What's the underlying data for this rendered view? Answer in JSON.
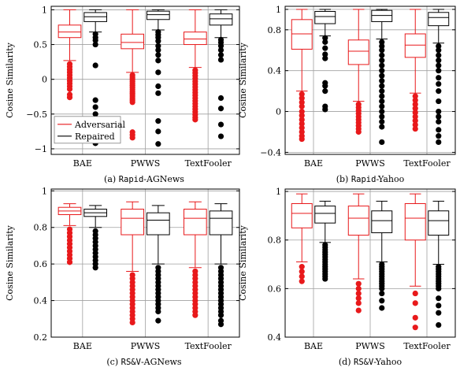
{
  "colors": {
    "adversarial": "#e8191b",
    "repaired": "#000000",
    "grid": "#a0a0a0"
  },
  "legend": {
    "adversarial": "Adversarial",
    "repaired": "Repaired"
  },
  "chart_data": [
    {
      "type": "box",
      "caption_prefix": "(a) ",
      "caption_mono": "Rapid",
      "caption_rest": "-AGNews",
      "ylabel": "Cosine Similarity",
      "ylim": [
        -1.08,
        1.05
      ],
      "yticks": [
        -1,
        -0.5,
        0,
        0.5,
        1
      ],
      "ytick_labels": [
        "−1",
        "−0.5",
        "0",
        "0.5",
        "1"
      ],
      "categories": [
        "BAE",
        "PWWS",
        "TextFooler"
      ],
      "legend_shown": true,
      "series": [
        {
          "name": "Adversarial",
          "boxes": [
            {
              "whislo": 0.27,
              "q1": 0.6,
              "med": 0.68,
              "q3": 0.78,
              "whishi": 1.0,
              "fliers": [
                0.22,
                0.18,
                0.14,
                0.1,
                0.06,
                0.02,
                -0.02,
                -0.06,
                -0.1,
                -0.14,
                -0.22,
                -0.26
              ]
            },
            {
              "whislo": 0.1,
              "q1": 0.44,
              "med": 0.53,
              "q3": 0.65,
              "whishi": 1.0,
              "fliers": [
                0.06,
                0.03,
                0.0,
                -0.03,
                -0.06,
                -0.09,
                -0.12,
                -0.15,
                -0.18,
                -0.21,
                -0.24,
                -0.27,
                -0.3,
                -0.33,
                -0.76,
                -0.8,
                -0.84
              ]
            },
            {
              "whislo": 0.17,
              "q1": 0.5,
              "med": 0.58,
              "q3": 0.68,
              "whishi": 1.0,
              "fliers": [
                0.13,
                0.09,
                0.05,
                0.01,
                -0.03,
                -0.07,
                -0.11,
                -0.15,
                -0.19,
                -0.23,
                -0.27,
                -0.31,
                -0.35,
                -0.39,
                -0.43,
                -0.47,
                -0.51,
                -0.55,
                -0.58
              ]
            }
          ]
        },
        {
          "name": "Repaired",
          "boxes": [
            {
              "whislo": 0.68,
              "q1": 0.83,
              "med": 0.9,
              "q3": 0.96,
              "whishi": 1.0,
              "fliers": [
                0.65,
                0.6,
                0.56,
                0.5,
                0.2,
                -0.3,
                -0.4,
                -0.5,
                -0.6,
                -0.68,
                -0.8,
                -0.85,
                -0.92
              ]
            },
            {
              "whislo": 0.71,
              "q1": 0.86,
              "med": 0.93,
              "q3": 0.98,
              "whishi": 1.0,
              "fliers": [
                0.68,
                0.64,
                0.6,
                0.55,
                0.48,
                0.42,
                0.35,
                0.27,
                0.1,
                -0.1,
                -0.2,
                -0.6,
                -0.75,
                -0.93
              ]
            },
            {
              "whislo": 0.6,
              "q1": 0.78,
              "med": 0.87,
              "q3": 0.94,
              "whishi": 1.0,
              "fliers": [
                0.57,
                0.53,
                0.48,
                0.42,
                0.35,
                0.28,
                -0.27,
                -0.42,
                -0.65,
                -0.82
              ]
            }
          ]
        }
      ]
    },
    {
      "type": "box",
      "caption_prefix": "(b) ",
      "caption_mono": "Rapid",
      "caption_rest": "-Yahoo",
      "ylabel": "Cosine Similarity",
      "ylim": [
        -0.42,
        1.03
      ],
      "yticks": [
        -0.4,
        0,
        0.4,
        0.8,
        1
      ],
      "ytick_labels": [
        "−0.4",
        "0",
        "0.4",
        "0.8",
        "1"
      ],
      "categories": [
        "BAE",
        "PWWS",
        "TextFooler"
      ],
      "legend_shown": false,
      "series": [
        {
          "name": "Adversarial",
          "boxes": [
            {
              "whislo": 0.2,
              "q1": 0.61,
              "med": 0.76,
              "q3": 0.9,
              "whishi": 1.0,
              "fliers": [
                0.17,
                0.13,
                0.09,
                0.05,
                0.0,
                -0.04,
                -0.08,
                -0.12,
                -0.16,
                -0.2,
                -0.24,
                -0.27
              ]
            },
            {
              "whislo": 0.1,
              "q1": 0.46,
              "med": 0.59,
              "q3": 0.7,
              "whishi": 1.0,
              "fliers": [
                0.07,
                0.04,
                0.01,
                -0.02,
                -0.05,
                -0.08,
                -0.11,
                -0.14,
                -0.17,
                -0.2
              ]
            },
            {
              "whislo": 0.18,
              "q1": 0.53,
              "med": 0.65,
              "q3": 0.76,
              "whishi": 1.0,
              "fliers": [
                0.15,
                0.11,
                0.07,
                0.03,
                -0.01,
                -0.05,
                -0.09,
                -0.13,
                -0.17
              ]
            }
          ]
        },
        {
          "name": "Repaired",
          "boxes": [
            {
              "whislo": 0.74,
              "q1": 0.86,
              "med": 0.93,
              "q3": 0.98,
              "whishi": 1.0,
              "fliers": [
                0.72,
                0.68,
                0.62,
                0.56,
                0.52,
                0.28,
                0.25,
                0.2,
                0.05,
                0.02
              ]
            },
            {
              "whislo": 0.71,
              "q1": 0.88,
              "med": 0.94,
              "q3": 0.99,
              "whishi": 1.0,
              "fliers": [
                0.68,
                0.64,
                0.6,
                0.55,
                0.5,
                0.45,
                0.4,
                0.35,
                0.3,
                0.25,
                0.2,
                0.15,
                0.1,
                0.05,
                0.0,
                -0.05,
                -0.1,
                -0.15,
                -0.3
              ]
            },
            {
              "whislo": 0.67,
              "q1": 0.84,
              "med": 0.92,
              "q3": 0.97,
              "whishi": 1.0,
              "fliers": [
                0.64,
                0.6,
                0.55,
                0.5,
                0.45,
                0.4,
                0.33,
                0.27,
                0.2,
                0.1,
                0.0,
                -0.05,
                -0.1,
                -0.18,
                -0.24,
                -0.3
              ]
            }
          ]
        }
      ]
    },
    {
      "type": "box",
      "caption_prefix": "(c) ",
      "caption_mono": "RS&V",
      "caption_rest": "-AGNews",
      "ylabel": "Cosine Similarity",
      "ylim": [
        0.2,
        1.01
      ],
      "yticks": [
        0.2,
        0.4,
        0.6,
        0.8,
        1
      ],
      "ytick_labels": [
        "0.2",
        "0.4",
        "0.6",
        "0.8",
        "1"
      ],
      "categories": [
        "BAE",
        "PWWS",
        "TextFooler"
      ],
      "legend_shown": false,
      "series": [
        {
          "name": "Adversarial",
          "boxes": [
            {
              "whislo": 0.81,
              "q1": 0.87,
              "med": 0.89,
              "q3": 0.91,
              "whishi": 0.93,
              "fliers": [
                0.79,
                0.77,
                0.75,
                0.73,
                0.71,
                0.69,
                0.67,
                0.65,
                0.63,
                0.61
              ]
            },
            {
              "whislo": 0.56,
              "q1": 0.76,
              "med": 0.85,
              "q3": 0.9,
              "whishi": 0.94,
              "fliers": [
                0.54,
                0.52,
                0.5,
                0.48,
                0.46,
                0.44,
                0.42,
                0.4,
                0.38,
                0.36,
                0.34,
                0.32,
                0.3,
                0.28
              ]
            },
            {
              "whislo": 0.58,
              "q1": 0.76,
              "med": 0.85,
              "q3": 0.9,
              "whishi": 0.94,
              "fliers": [
                0.56,
                0.54,
                0.52,
                0.5,
                0.48,
                0.46,
                0.44,
                0.42,
                0.4,
                0.38,
                0.36,
                0.34,
                0.32
              ]
            }
          ]
        },
        {
          "name": "Repaired",
          "boxes": [
            {
              "whislo": 0.8,
              "q1": 0.86,
              "med": 0.88,
              "q3": 0.9,
              "whishi": 0.92,
              "fliers": [
                0.78,
                0.76,
                0.74,
                0.72,
                0.7,
                0.68,
                0.66,
                0.64,
                0.62,
                0.6,
                0.58
              ]
            },
            {
              "whislo": 0.6,
              "q1": 0.76,
              "med": 0.84,
              "q3": 0.88,
              "whishi": 0.92,
              "fliers": [
                0.58,
                0.56,
                0.54,
                0.52,
                0.5,
                0.48,
                0.46,
                0.44,
                0.42,
                0.4,
                0.38,
                0.36,
                0.34,
                0.29
              ]
            },
            {
              "whislo": 0.6,
              "q1": 0.76,
              "med": 0.85,
              "q3": 0.89,
              "whishi": 0.93,
              "fliers": [
                0.58,
                0.56,
                0.54,
                0.52,
                0.5,
                0.48,
                0.46,
                0.44,
                0.42,
                0.4,
                0.38,
                0.36,
                0.34,
                0.32,
                0.29,
                0.27
              ]
            }
          ]
        }
      ]
    },
    {
      "type": "box",
      "caption_prefix": "(d) ",
      "caption_mono": "RS&V",
      "caption_rest": "-Yahoo",
      "ylabel": "Cosine Similarity",
      "ylim": [
        0.4,
        1.01
      ],
      "yticks": [
        0.4,
        0.6,
        0.8,
        1
      ],
      "ytick_labels": [
        "0.4",
        "0.6",
        "0.8",
        "1"
      ],
      "categories": [
        "BAE",
        "PWWS",
        "TextFooler"
      ],
      "legend_shown": false,
      "series": [
        {
          "name": "Adversarial",
          "boxes": [
            {
              "whislo": 0.71,
              "q1": 0.85,
              "med": 0.91,
              "q3": 0.95,
              "whishi": 0.99,
              "fliers": [
                0.69,
                0.67,
                0.65,
                0.63
              ]
            },
            {
              "whislo": 0.64,
              "q1": 0.82,
              "med": 0.89,
              "q3": 0.94,
              "whishi": 0.99,
              "fliers": [
                0.62,
                0.6,
                0.58,
                0.56,
                0.54,
                0.51
              ]
            },
            {
              "whislo": 0.61,
              "q1": 0.8,
              "med": 0.89,
              "q3": 0.95,
              "whishi": 0.99,
              "fliers": [
                0.58,
                0.54,
                0.48,
                0.44
              ]
            }
          ]
        },
        {
          "name": "Repaired",
          "boxes": [
            {
              "whislo": 0.79,
              "q1": 0.87,
              "med": 0.91,
              "q3": 0.94,
              "whishi": 0.96,
              "fliers": [
                0.78,
                0.77,
                0.76,
                0.75,
                0.74,
                0.73,
                0.72,
                0.71,
                0.7,
                0.69,
                0.68,
                0.67,
                0.66,
                0.65,
                0.64
              ]
            },
            {
              "whislo": 0.71,
              "q1": 0.83,
              "med": 0.88,
              "q3": 0.92,
              "whishi": 0.96,
              "fliers": [
                0.7,
                0.69,
                0.68,
                0.67,
                0.66,
                0.65,
                0.64,
                0.63,
                0.62,
                0.61,
                0.6,
                0.58,
                0.55,
                0.52
              ]
            },
            {
              "whislo": 0.7,
              "q1": 0.82,
              "med": 0.88,
              "q3": 0.92,
              "whishi": 0.96,
              "fliers": [
                0.69,
                0.68,
                0.67,
                0.66,
                0.65,
                0.64,
                0.63,
                0.62,
                0.61,
                0.6,
                0.56,
                0.53,
                0.5,
                0.45
              ]
            }
          ]
        }
      ]
    }
  ]
}
